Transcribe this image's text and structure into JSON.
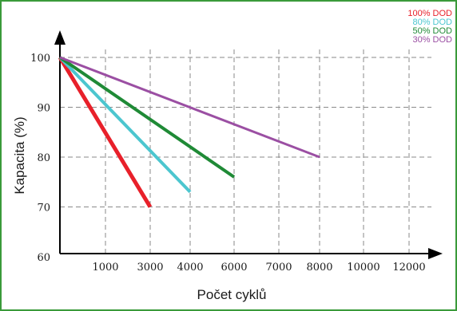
{
  "chart_data": {
    "type": "line",
    "xlabel": "Počet cyklů",
    "ylabel": "Kapacita (%)",
    "ylim": [
      60,
      100
    ],
    "y_ticks": [
      "60",
      "70",
      "80",
      "90",
      "100"
    ],
    "x_tick_labels": [
      "1000",
      "3000",
      "4000",
      "6000",
      "7000",
      "8000",
      "10000",
      "12000"
    ],
    "grid": true,
    "legend_position": "top-right",
    "series": [
      {
        "name": "100% DOD",
        "color": "#e8202a",
        "x": [
          0,
          3000
        ],
        "y": [
          100,
          70
        ]
      },
      {
        "name": "80% DOD",
        "color": "#4cc6cf",
        "x": [
          0,
          4000
        ],
        "y": [
          100,
          73
        ]
      },
      {
        "name": "50% DOD",
        "color": "#1f8a36",
        "x": [
          0,
          6000
        ],
        "y": [
          100,
          76
        ]
      },
      {
        "name": "30% DOD",
        "color": "#9b4fa3",
        "x": [
          0,
          8000
        ],
        "y": [
          100,
          80
        ]
      }
    ],
    "colors": {
      "frame": "#3a9a3a",
      "axis": "#000000",
      "grid": "#8a8a8a"
    }
  }
}
